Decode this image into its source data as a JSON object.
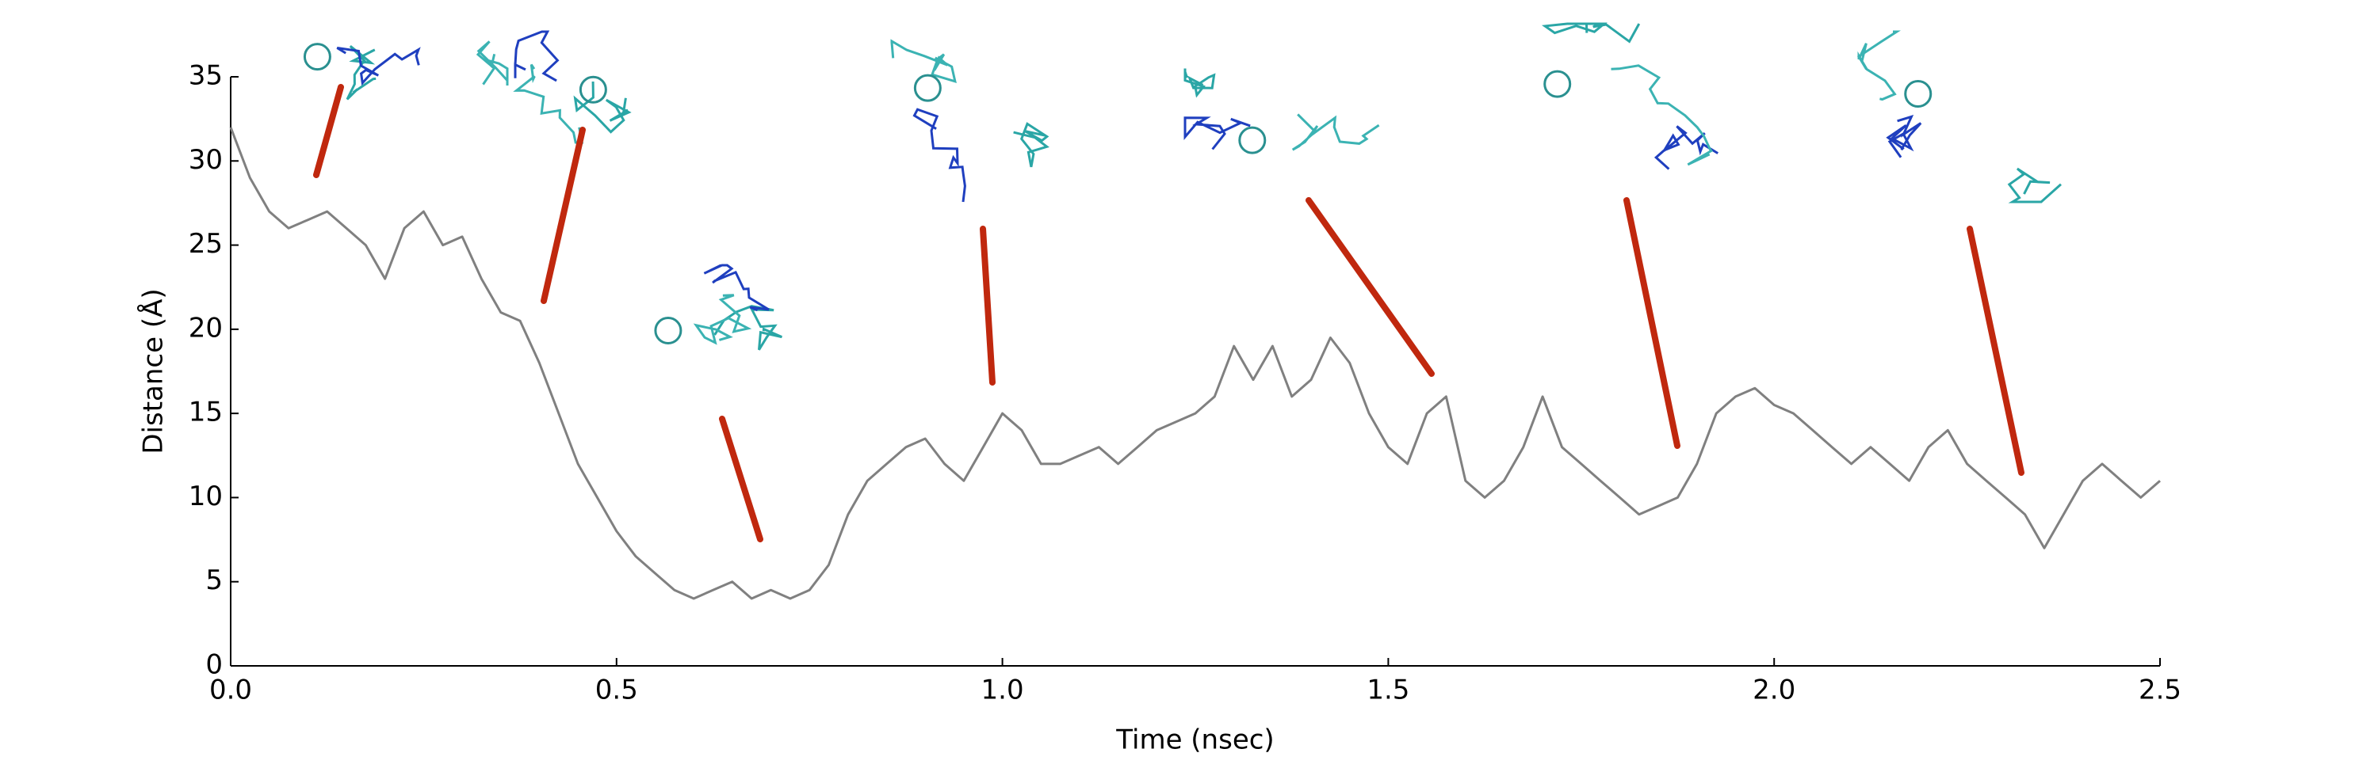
{
  "chart_data": {
    "type": "line",
    "xlabel": "Time (nsec)",
    "ylabel": "Distance (Å)",
    "x": [
      0,
      0.025,
      0.05,
      0.075,
      0.1,
      0.125,
      0.15,
      0.175,
      0.2,
      0.225,
      0.25,
      0.275,
      0.3,
      0.325,
      0.35,
      0.375,
      0.4,
      0.425,
      0.45,
      0.475,
      0.5,
      0.525,
      0.55,
      0.575,
      0.6,
      0.625,
      0.65,
      0.675,
      0.7,
      0.725,
      0.75,
      0.775,
      0.8,
      0.825,
      0.85,
      0.875,
      0.9,
      0.925,
      0.95,
      0.975,
      1.0,
      1.025,
      1.05,
      1.075,
      1.1,
      1.125,
      1.15,
      1.175,
      1.2,
      1.225,
      1.25,
      1.275,
      1.3,
      1.325,
      1.35,
      1.375,
      1.4,
      1.425,
      1.45,
      1.475,
      1.5,
      1.525,
      1.55,
      1.575,
      1.6,
      1.625,
      1.65,
      1.675,
      1.7,
      1.725,
      1.75,
      1.775,
      1.8,
      1.825,
      1.85,
      1.875,
      1.9,
      1.925,
      1.95,
      1.975,
      2.0,
      2.025,
      2.05,
      2.075,
      2.1,
      2.125,
      2.15,
      2.175,
      2.2,
      2.225,
      2.25,
      2.275,
      2.3,
      2.325,
      2.35,
      2.375,
      2.4,
      2.425,
      2.45,
      2.475,
      2.5
    ],
    "values": [
      32,
      29,
      27,
      26,
      26.5,
      27,
      26,
      25,
      23,
      26,
      27,
      25,
      25.5,
      23,
      21,
      20.5,
      18,
      15,
      12,
      10,
      8,
      6.5,
      5.5,
      4.5,
      4,
      4.5,
      5,
      4,
      4.5,
      4,
      4.5,
      6,
      9,
      11,
      12,
      13,
      13.5,
      12,
      11,
      13,
      15,
      14,
      12,
      12,
      12.5,
      13,
      12,
      13,
      14,
      14.5,
      15,
      16,
      19,
      17,
      19,
      16,
      17,
      19.5,
      18,
      15,
      13,
      12,
      15,
      16,
      11,
      10,
      11,
      13,
      16,
      13,
      12,
      11,
      10,
      9,
      9.5,
      10,
      12,
      15,
      16,
      16.5,
      15.5,
      15,
      14,
      13,
      12,
      13,
      12,
      11,
      13,
      14,
      12,
      11,
      10,
      9,
      7,
      9,
      11,
      12,
      11,
      10,
      11
    ],
    "color": "#808080",
    "xlim": [
      0,
      2.5
    ],
    "xticks": [
      {
        "value": 0,
        "label": "0.0"
      },
      0.5,
      {
        "value": 1,
        "label": "1.0"
      },
      1.5,
      {
        "value": 2,
        "label": "2.0"
      },
      2.5
    ],
    "ylim": [
      0,
      35
    ],
    "yticks": [
      0,
      5,
      10,
      15,
      20,
      25,
      30,
      35
    ],
    "grid": false
  }
}
